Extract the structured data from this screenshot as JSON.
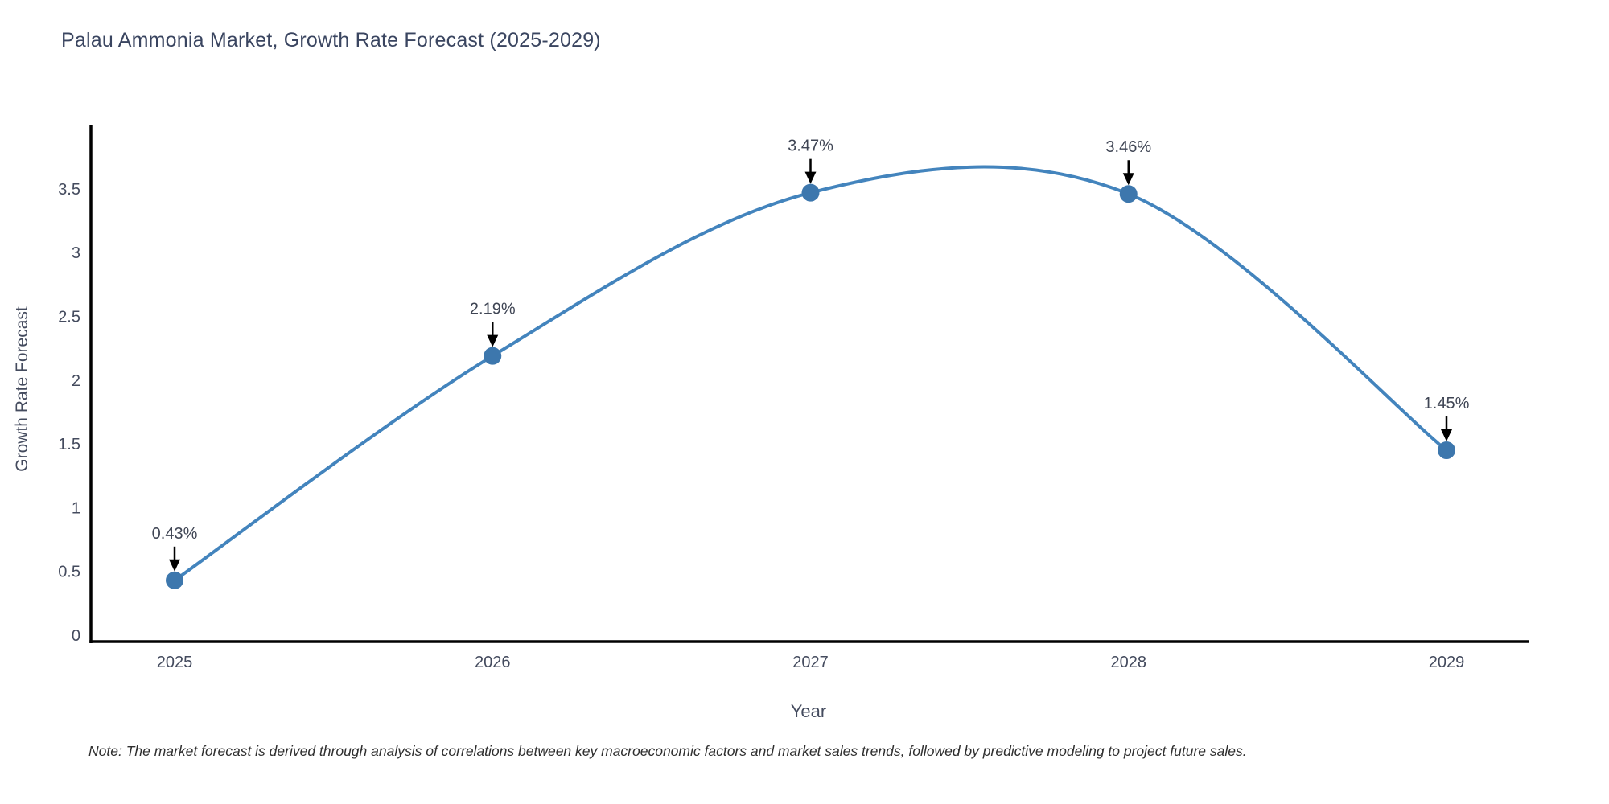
{
  "title": "Palau Ammonia Market, Growth Rate Forecast (2025-2029)",
  "note": "Note: The market forecast is derived through analysis of correlations between key macroeconomic factors and market sales trends, followed by predictive modeling to project future sales.",
  "chart_data": {
    "type": "line",
    "line_shape": "spline",
    "categories": [
      "2025",
      "2026",
      "2027",
      "2028",
      "2029"
    ],
    "values": [
      0.43,
      2.19,
      3.47,
      3.46,
      1.45
    ],
    "point_labels": [
      "0.43%",
      "2.19%",
      "3.47%",
      "3.46%",
      "1.45%"
    ],
    "title": "Palau Ammonia Market, Growth Rate Forecast (2025-2029)",
    "xlabel": "Year",
    "ylabel": "Growth Rate Forecast",
    "yticks": [
      "0",
      "0.5",
      "1",
      "1.5",
      "2",
      "2.5",
      "3",
      "3.5"
    ],
    "ytick_values": [
      0,
      0.5,
      1,
      1.5,
      2,
      2.5,
      3,
      3.5
    ],
    "ylim": [
      0,
      4.05
    ],
    "grid": false,
    "legend": "none",
    "annotations_have_arrows": true,
    "colors": {
      "line": "#4384bd",
      "marker": "#3d77ad",
      "axis": "#000000",
      "arrow": "#000000",
      "title_text": "#3a4560",
      "tick_text": "#444b5e",
      "annotation_text": "#3f4554",
      "note_text": "#2f2f2f",
      "background": "#ffffff"
    }
  }
}
